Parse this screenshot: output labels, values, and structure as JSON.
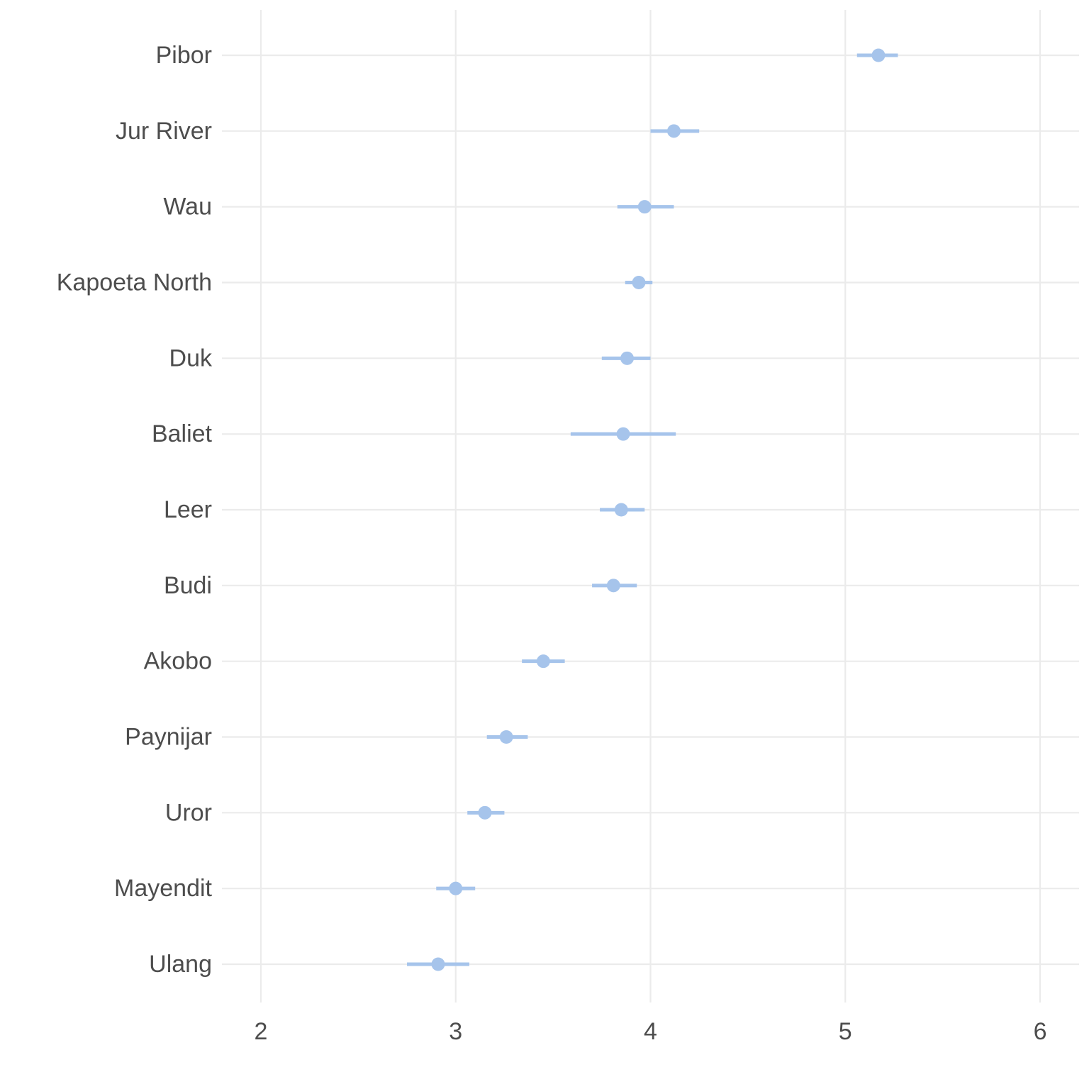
{
  "chart_data": {
    "type": "scatter",
    "subtype": "dot-and-interval",
    "title": "",
    "xlabel": "",
    "ylabel": "",
    "xlim": [
      1.8,
      6.2
    ],
    "x_ticks": [
      2,
      3,
      4,
      5,
      6
    ],
    "grid": true,
    "legend": "none",
    "point_color": "#a6c4eb",
    "categories": [
      "Pibor",
      "Jur River",
      "Wau",
      "Kapoeta North",
      "Duk",
      "Baliet",
      "Leer",
      "Budi",
      "Akobo",
      "Paynijar",
      "Uror",
      "Mayendit",
      "Ulang"
    ],
    "points": [
      {
        "label": "Pibor",
        "estimate": 5.17,
        "low": 5.06,
        "high": 5.27
      },
      {
        "label": "Jur River",
        "estimate": 4.12,
        "low": 4.0,
        "high": 4.25
      },
      {
        "label": "Wau",
        "estimate": 3.97,
        "low": 3.83,
        "high": 4.12
      },
      {
        "label": "Kapoeta North",
        "estimate": 3.94,
        "low": 3.87,
        "high": 4.01
      },
      {
        "label": "Duk",
        "estimate": 3.88,
        "low": 3.75,
        "high": 4.0
      },
      {
        "label": "Baliet",
        "estimate": 3.86,
        "low": 3.59,
        "high": 4.13
      },
      {
        "label": "Leer",
        "estimate": 3.85,
        "low": 3.74,
        "high": 3.97
      },
      {
        "label": "Budi",
        "estimate": 3.81,
        "low": 3.7,
        "high": 3.93
      },
      {
        "label": "Akobo",
        "estimate": 3.45,
        "low": 3.34,
        "high": 3.56
      },
      {
        "label": "Paynijar",
        "estimate": 3.26,
        "low": 3.16,
        "high": 3.37
      },
      {
        "label": "Uror",
        "estimate": 3.15,
        "low": 3.06,
        "high": 3.25
      },
      {
        "label": "Mayendit",
        "estimate": 3.0,
        "low": 2.9,
        "high": 3.1
      },
      {
        "label": "Ulang",
        "estimate": 2.91,
        "low": 2.75,
        "high": 3.07
      }
    ]
  }
}
